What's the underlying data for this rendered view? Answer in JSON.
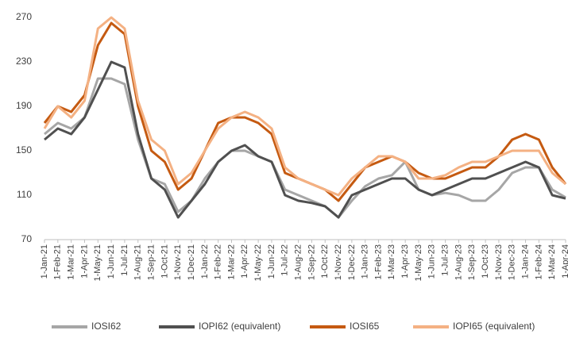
{
  "chart_data": {
    "type": "line",
    "categories": [
      "1-Jan-21",
      "1-Feb-21",
      "1-Mar-21",
      "1-Apr-21",
      "1-May-21",
      "1-Jun-21",
      "1-Jul-21",
      "1-Aug-21",
      "1-Sep-21",
      "1-Oct-21",
      "1-Nov-21",
      "1-Dec-21",
      "1-Jan-22",
      "1-Feb-22",
      "1-Mar-22",
      "1-Apr-22",
      "1-May-22",
      "1-Jun-22",
      "1-Jul-22",
      "1-Aug-22",
      "1-Sep-22",
      "1-Oct-22",
      "1-Nov-22",
      "1-Dec-22",
      "1-Jan-23",
      "1-Feb-23",
      "1-Mar-23",
      "1-Apr-23",
      "1-May-23",
      "1-Jun-23",
      "1-Jul-23",
      "1-Aug-23",
      "1-Sep-23",
      "1-Oct-23",
      "1-Nov-23",
      "1-Dec-23",
      "1-Jan-24",
      "1-Feb-24",
      "1-Mar-24",
      "1-Apr-24"
    ],
    "series": [
      {
        "name": "IOSI62",
        "color": "#a6a6a6",
        "values": [
          165,
          175,
          170,
          180,
          215,
          215,
          210,
          160,
          125,
          120,
          95,
          105,
          125,
          140,
          150,
          150,
          145,
          140,
          115,
          110,
          105,
          100,
          90,
          105,
          118,
          125,
          128,
          140,
          115,
          110,
          112,
          110,
          105,
          105,
          115,
          130,
          135,
          135,
          115,
          108
        ]
      },
      {
        "name": "IOPI62 (equivalent)",
        "color": "#505050",
        "values": [
          160,
          170,
          165,
          180,
          205,
          230,
          225,
          165,
          125,
          115,
          90,
          105,
          120,
          140,
          150,
          155,
          145,
          140,
          110,
          105,
          103,
          100,
          90,
          110,
          115,
          120,
          125,
          125,
          115,
          110,
          115,
          120,
          125,
          125,
          130,
          135,
          140,
          135,
          110,
          107
        ]
      },
      {
        "name": "IOSI65",
        "color": "#c55a11",
        "values": [
          175,
          190,
          185,
          200,
          245,
          265,
          255,
          190,
          150,
          140,
          115,
          125,
          150,
          175,
          180,
          180,
          175,
          165,
          130,
          125,
          120,
          115,
          105,
          120,
          135,
          140,
          145,
          140,
          130,
          125,
          125,
          130,
          135,
          135,
          145,
          160,
          165,
          160,
          135,
          120
        ]
      },
      {
        "name": "IOPI65 (equivalent)",
        "color": "#f4b183",
        "values": [
          170,
          190,
          180,
          195,
          260,
          270,
          260,
          195,
          160,
          150,
          120,
          130,
          150,
          170,
          180,
          185,
          180,
          170,
          135,
          125,
          120,
          115,
          110,
          125,
          135,
          145,
          145,
          140,
          125,
          125,
          128,
          135,
          140,
          140,
          145,
          150,
          150,
          150,
          130,
          120
        ]
      }
    ],
    "ylim": [
      70,
      280
    ],
    "yticks": [
      70,
      110,
      150,
      190,
      230,
      270
    ],
    "legend": "bottom"
  }
}
